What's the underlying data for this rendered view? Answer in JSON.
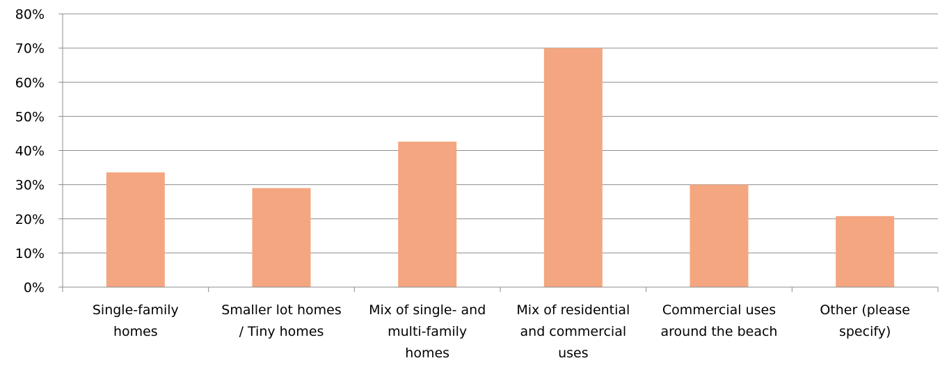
{
  "chart_data": {
    "type": "bar",
    "categories": [
      [
        "Single-family",
        "homes"
      ],
      [
        "Smaller lot homes",
        "/ Tiny homes"
      ],
      [
        "Mix of single- and",
        "multi-family",
        "homes"
      ],
      [
        "Mix of residential",
        "and commercial",
        "uses"
      ],
      [
        "Commercial uses",
        "around the beach"
      ],
      [
        "Other (please",
        "specify)"
      ]
    ],
    "values": [
      33.6,
      29.0,
      42.6,
      70.0,
      30.0,
      20.8
    ],
    "ylim": [
      0,
      80
    ],
    "yticks": [
      "0%",
      "10%",
      "20%",
      "30%",
      "40%",
      "50%",
      "60%",
      "70%",
      "80%"
    ],
    "grid": true,
    "legend": "none",
    "bar_color": "#f4a680",
    "grid_color": "#8c8c8c"
  }
}
